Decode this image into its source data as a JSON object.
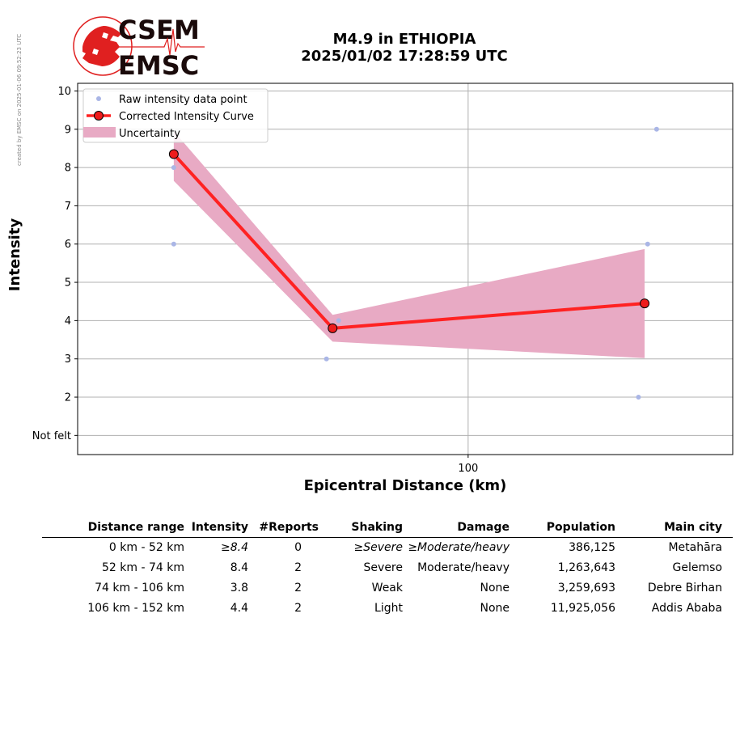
{
  "side_note": "created by EMSC on 2025-01-06 09:52:23 UTC",
  "logo": {
    "top_text": "CSEM",
    "bottom_text": "EMSC"
  },
  "title": {
    "line1": "M4.9 in ETHIOPIA",
    "line2": "2025/01/02 17:28:59 UTC"
  },
  "colors": {
    "raw_point": "#aab6e6",
    "curve": "#ff2222",
    "marker_face": "#ee1c1c",
    "uncertainty": "#e8aac4",
    "grid": "#b0b0b0"
  },
  "chart_data": {
    "type": "line",
    "xlabel": "Epicentral Distance (km)",
    "ylabel": "Intensity",
    "x_scale": "log",
    "x_ticks": [
      100
    ],
    "y_ticks": [
      {
        "value": 1,
        "label": "Not felt"
      },
      {
        "value": 2,
        "label": "2"
      },
      {
        "value": 3,
        "label": "3"
      },
      {
        "value": 4,
        "label": "4"
      },
      {
        "value": 5,
        "label": "5"
      },
      {
        "value": 6,
        "label": "6"
      },
      {
        "value": 7,
        "label": "7"
      },
      {
        "value": 8,
        "label": "8"
      },
      {
        "value": 9,
        "label": "9"
      },
      {
        "value": 10,
        "label": "10"
      }
    ],
    "xlim": [
      42,
      180
    ],
    "ylim": [
      0.5,
      10.2
    ],
    "grid": true,
    "legend_position": "top-left",
    "legend": [
      "Raw intensity data point",
      "Corrected Intensity Curve",
      "Uncertainty"
    ],
    "raw_points": [
      {
        "x": 52,
        "y": 8
      },
      {
        "x": 52,
        "y": 6
      },
      {
        "x": 73,
        "y": 3
      },
      {
        "x": 75,
        "y": 4
      },
      {
        "x": 146,
        "y": 2
      },
      {
        "x": 149,
        "y": 6
      },
      {
        "x": 152,
        "y": 9
      }
    ],
    "curve": [
      {
        "x": 52,
        "y": 8.35
      },
      {
        "x": 74,
        "y": 3.8
      },
      {
        "x": 148,
        "y": 4.45
      }
    ],
    "uncertainty": [
      {
        "x": 52,
        "lower": 7.65,
        "upper": 8.95
      },
      {
        "x": 74,
        "lower": 3.45,
        "upper": 4.15
      },
      {
        "x": 148,
        "lower": 3.02,
        "upper": 5.87
      }
    ]
  },
  "table": {
    "headers": [
      "Distance range",
      "Intensity",
      "#Reports",
      "Shaking",
      "Damage",
      "Population",
      "Main city"
    ],
    "rows": [
      {
        "range": "0 km -   52 km",
        "intensity": "≥8.4",
        "reports": "0",
        "shaking": "≥Severe",
        "damage": "≥Moderate/heavy",
        "population": "386,125",
        "city": "Metahāra"
      },
      {
        "range": "52 km -   74 km",
        "intensity": "8.4",
        "reports": "2",
        "shaking": "Severe",
        "damage": "Moderate/heavy",
        "population": "1,263,643",
        "city": "Gelemso"
      },
      {
        "range": "74 km -  106 km",
        "intensity": "3.8",
        "reports": "2",
        "shaking": "Weak",
        "damage": "None",
        "population": "3,259,693",
        "city": "Debre Birhan"
      },
      {
        "range": "106 km -  152 km",
        "intensity": "4.4",
        "reports": "2",
        "shaking": "Light",
        "damage": "None",
        "population": "11,925,056",
        "city": "Addis Ababa"
      }
    ]
  }
}
